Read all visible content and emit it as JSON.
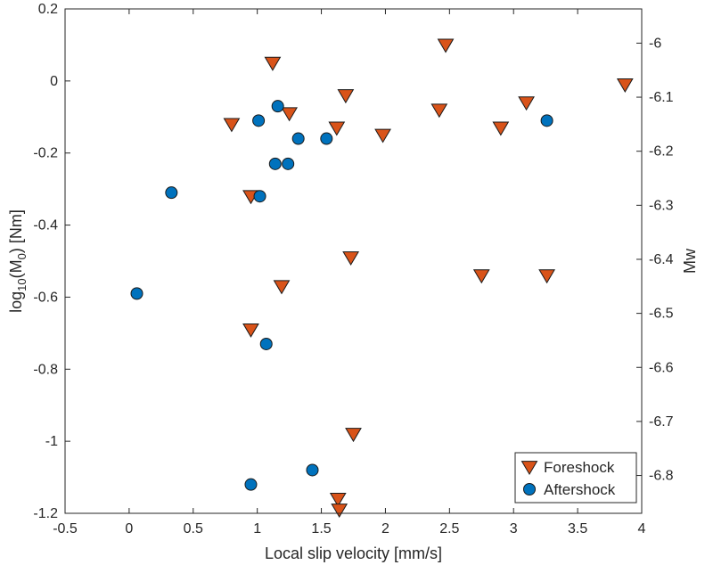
{
  "chart_data": {
    "type": "scatter",
    "xlabel": "Local slip velocity [mm/s]",
    "ylabel_base": "log",
    "ylabel_sub": "10",
    "ylabel_mid": "(M",
    "ylabel_sub2": "0",
    "ylabel_end": ") [Nm]",
    "y2label": "Mw",
    "xlim": [
      -0.5,
      4
    ],
    "ylim": [
      -1.2,
      0.2
    ],
    "xticks": [
      "-0.5",
      "0",
      "0.5",
      "1",
      "1.5",
      "2",
      "2.5",
      "3",
      "3.5",
      "4"
    ],
    "yticks": [
      "0.2",
      "0",
      "-0.2",
      "-0.4",
      "-0.6",
      "-0.8",
      "-1",
      "-1.2"
    ],
    "y2ticks": [
      "-6",
      "-6.1",
      "-6.2",
      "-6.3",
      "-6.4",
      "-6.5",
      "-6.6",
      "-6.7",
      "-6.8"
    ],
    "y2_mapping": "Mw = (2/3)*log10(M0) - 6.07",
    "legend_position": "bottom-right",
    "grid": false,
    "series": [
      {
        "name": "Foreshock",
        "marker": "triangle-down",
        "color": "#D95319",
        "points": [
          [
            0.8,
            -0.12
          ],
          [
            0.95,
            -0.32
          ],
          [
            0.95,
            -0.69
          ],
          [
            1.12,
            0.05
          ],
          [
            1.19,
            -0.57
          ],
          [
            1.25,
            -0.09
          ],
          [
            1.62,
            -0.13
          ],
          [
            1.63,
            -1.16
          ],
          [
            1.64,
            -1.19
          ],
          [
            1.69,
            -0.04
          ],
          [
            1.73,
            -0.49
          ],
          [
            1.75,
            -0.98
          ],
          [
            1.98,
            -0.15
          ],
          [
            2.42,
            -0.08
          ],
          [
            2.47,
            0.1
          ],
          [
            2.75,
            -0.54
          ],
          [
            2.9,
            -0.13
          ],
          [
            3.1,
            -0.06
          ],
          [
            3.26,
            -0.54
          ],
          [
            3.87,
            -0.01
          ]
        ]
      },
      {
        "name": "Aftershock",
        "marker": "circle",
        "color": "#0072BD",
        "points": [
          [
            0.06,
            -0.59
          ],
          [
            0.33,
            -0.31
          ],
          [
            0.95,
            -1.12
          ],
          [
            1.01,
            -0.11
          ],
          [
            1.02,
            -0.32
          ],
          [
            1.07,
            -0.73
          ],
          [
            1.14,
            -0.23
          ],
          [
            1.16,
            -0.07
          ],
          [
            1.24,
            -0.23
          ],
          [
            1.32,
            -0.16
          ],
          [
            1.43,
            -1.08
          ],
          [
            1.54,
            -0.16
          ],
          [
            3.26,
            -0.11
          ]
        ]
      }
    ]
  }
}
